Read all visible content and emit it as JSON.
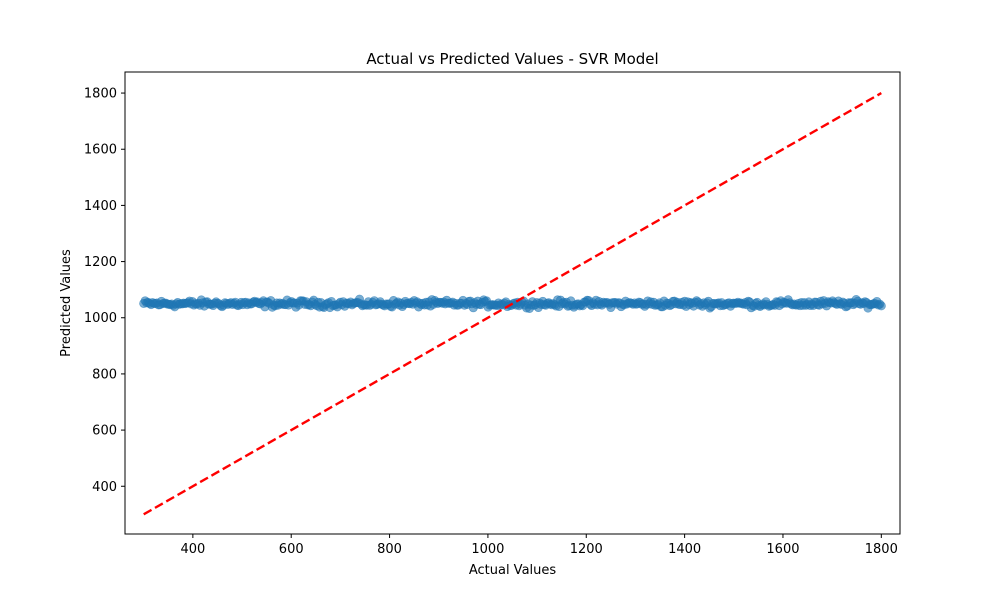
{
  "chart_data": {
    "type": "scatter",
    "title": "Actual vs Predicted Values - SVR Model",
    "xlabel": "Actual Values",
    "ylabel": "Predicted Values",
    "xlim": [
      262,
      1838
    ],
    "ylim": [
      230,
      1875
    ],
    "xticks": [
      400,
      600,
      800,
      1000,
      1200,
      1400,
      1600,
      1800
    ],
    "yticks": [
      400,
      600,
      800,
      1000,
      1200,
      1400,
      1600,
      1800
    ],
    "grid": false,
    "legend": "none",
    "series": [
      {
        "kind": "scatter",
        "color": "#1f77b4",
        "alpha": 0.6,
        "x_range": [
          300,
          1800
        ],
        "y_center": 1050,
        "y_spread": 12,
        "count": 500
      },
      {
        "kind": "line",
        "style": "dashed",
        "color": "#ff0000",
        "x": [
          300,
          1800
        ],
        "y": [
          300,
          1800
        ]
      }
    ]
  }
}
